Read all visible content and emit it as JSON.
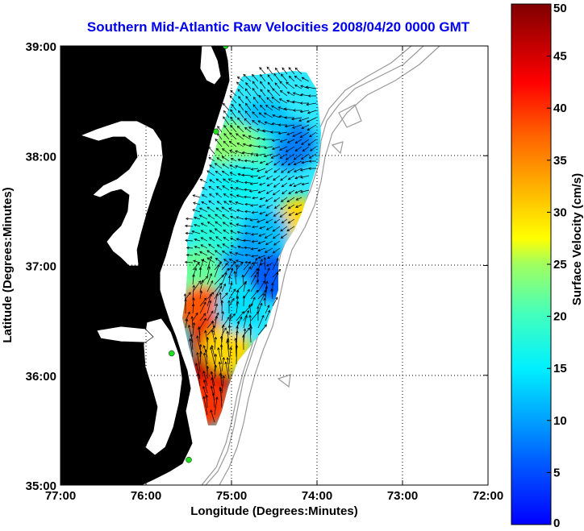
{
  "title": "Southern Mid-Atlantic Raw Velocities 2008/04/20 0000 GMT",
  "x_axis": {
    "label": "Longitude (Degrees:Minutes)",
    "ticks": [
      {
        "value": -77,
        "label": "77:00"
      },
      {
        "value": -76,
        "label": "76:00"
      },
      {
        "value": -75,
        "label": "75:00"
      },
      {
        "value": -74,
        "label": "74:00"
      },
      {
        "value": -73,
        "label": "73:00"
      },
      {
        "value": -72,
        "label": "72:00"
      }
    ],
    "range": [
      -77,
      -72
    ]
  },
  "y_axis": {
    "label": "Latitude (Degrees:Minutes)",
    "ticks": [
      {
        "value": 35,
        "label": "35:00"
      },
      {
        "value": 36,
        "label": "36:00"
      },
      {
        "value": 37,
        "label": "37:00"
      },
      {
        "value": 38,
        "label": "38:00"
      },
      {
        "value": 39,
        "label": "39:00"
      }
    ],
    "range": [
      35,
      39
    ]
  },
  "colorbar": {
    "label": "Surface Velocity (cm/s)",
    "range": [
      0,
      50
    ],
    "ticks": [
      "0",
      "5",
      "10",
      "15",
      "20",
      "25",
      "30",
      "35",
      "40",
      "45",
      "50"
    ],
    "colormap": "jet"
  },
  "colors": {
    "land": "#55f5a0",
    "water": "#ffffff",
    "title": "#0000ee",
    "bathymetry": "#999999",
    "station": "#22dd22"
  },
  "stations": [
    {
      "lon": -75.07,
      "lat": 39.0
    },
    {
      "lon": -75.18,
      "lat": 38.22
    },
    {
      "lon": -75.7,
      "lat": 36.2
    },
    {
      "lon": -75.5,
      "lat": 35.23
    }
  ],
  "chart_data": {
    "type": "heatmap",
    "title": "Southern Mid-Atlantic Raw Velocities 2008/04/20 0000 GMT",
    "xlabel": "Longitude (Degrees:Minutes)",
    "ylabel": "Latitude (Degrees:Minutes)",
    "xlim": [
      -77,
      -72
    ],
    "ylim": [
      35,
      39
    ],
    "grid": true,
    "color_scale": {
      "min": 0,
      "max": 50,
      "units": "cm/s"
    },
    "regions": [
      {
        "lon": -74.3,
        "lat": 38.1,
        "speed": 8
      },
      {
        "lon": -74.6,
        "lat": 38.3,
        "speed": 12
      },
      {
        "lon": -74.8,
        "lat": 38.05,
        "speed": 20
      },
      {
        "lon": -75.0,
        "lat": 38.1,
        "speed": 24
      },
      {
        "lon": -74.9,
        "lat": 37.75,
        "speed": 16
      },
      {
        "lon": -74.2,
        "lat": 37.4,
        "speed": 30
      },
      {
        "lon": -74.6,
        "lat": 37.3,
        "speed": 12
      },
      {
        "lon": -74.9,
        "lat": 37.1,
        "speed": 10
      },
      {
        "lon": -74.5,
        "lat": 36.9,
        "speed": 6
      },
      {
        "lon": -75.2,
        "lat": 37.3,
        "speed": 18
      },
      {
        "lon": -75.4,
        "lat": 36.95,
        "speed": 22
      },
      {
        "lon": -75.35,
        "lat": 36.6,
        "speed": 38
      },
      {
        "lon": -75.2,
        "lat": 36.3,
        "speed": 44
      },
      {
        "lon": -75.25,
        "lat": 36.0,
        "speed": 46
      },
      {
        "lon": -75.3,
        "lat": 35.75,
        "speed": 40
      },
      {
        "lon": -75.05,
        "lat": 36.25,
        "speed": 30
      },
      {
        "lon": -74.9,
        "lat": 36.6,
        "speed": 14
      }
    ]
  }
}
